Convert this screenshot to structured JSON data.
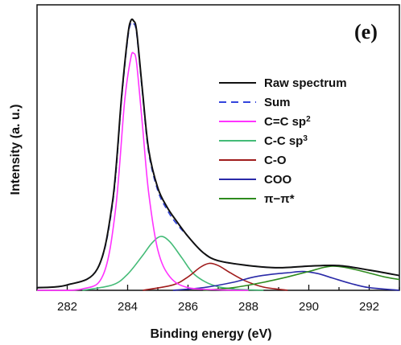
{
  "chart_data": {
    "type": "line",
    "panel_label": "(e)",
    "xlabel": "Binding energy (eV)",
    "ylabel": "Intensity (a. u.)",
    "xlim": [
      281,
      293
    ],
    "ylim": [
      0,
      1.06
    ],
    "x_ticks": [
      282,
      284,
      286,
      288,
      290,
      292
    ],
    "x_tick_labels": [
      "282",
      "284",
      "286",
      "288",
      "290",
      "292"
    ],
    "grid": false,
    "legend_position": "top-right",
    "colors": {
      "raw": "#111111",
      "sum": "#3344dd",
      "cc_sp2": "#ff33ff",
      "cc_sp3": "#44bb77",
      "co": "#a01c1c",
      "coo": "#2a2aa8",
      "pipi": "#2e8b1e"
    },
    "series": [
      {
        "key": "raw",
        "name": "Raw spectrum",
        "style": "solid",
        "x": [
          281.0,
          282.0,
          283.0,
          283.5,
          283.8,
          284.0,
          284.1,
          284.2,
          284.3,
          284.5,
          284.7,
          285.0,
          285.3,
          285.6,
          286.0,
          286.5,
          287.0,
          288.0,
          289.0,
          290.0,
          291.0,
          292.0,
          293.0
        ],
        "y": [
          0.01,
          0.02,
          0.08,
          0.33,
          0.72,
          0.94,
          1.0,
          1.0,
          0.96,
          0.73,
          0.52,
          0.38,
          0.31,
          0.26,
          0.2,
          0.14,
          0.11,
          0.092,
          0.084,
          0.09,
          0.092,
          0.075,
          0.055
        ]
      },
      {
        "key": "sum",
        "name": "Sum",
        "style": "dashed",
        "x": [
          281.0,
          282.0,
          283.0,
          283.5,
          283.8,
          284.0,
          284.1,
          284.2,
          284.3,
          284.5,
          284.7,
          285.0,
          285.3,
          285.6,
          286.0,
          286.5,
          287.0,
          288.0,
          289.0,
          290.0,
          291.0,
          292.0,
          293.0
        ],
        "y": [
          0.01,
          0.02,
          0.08,
          0.32,
          0.71,
          0.93,
          0.99,
          0.99,
          0.95,
          0.72,
          0.51,
          0.37,
          0.3,
          0.25,
          0.2,
          0.14,
          0.11,
          0.092,
          0.084,
          0.09,
          0.092,
          0.075,
          0.055
        ]
      },
      {
        "key": "cc_sp2",
        "name": "C=C sp2",
        "style": "solid",
        "x": [
          281.0,
          282.5,
          283.2,
          283.6,
          283.9,
          284.1,
          284.2,
          284.3,
          284.5,
          284.7,
          285.0,
          285.4,
          286.0,
          287.0,
          288.0
        ],
        "y": [
          0.0,
          0.005,
          0.06,
          0.3,
          0.7,
          0.86,
          0.88,
          0.84,
          0.6,
          0.36,
          0.15,
          0.05,
          0.01,
          0.002,
          0.0
        ]
      },
      {
        "key": "cc_sp3",
        "name": "C-C sp3",
        "style": "solid",
        "x": [
          282.5,
          283.5,
          284.0,
          284.5,
          284.8,
          285.1,
          285.4,
          285.8,
          286.2,
          286.8,
          287.5,
          288.5
        ],
        "y": [
          0.0,
          0.02,
          0.06,
          0.13,
          0.175,
          0.2,
          0.18,
          0.12,
          0.06,
          0.02,
          0.005,
          0.0
        ]
      },
      {
        "key": "co",
        "name": "C-O",
        "style": "solid",
        "x": [
          284.5,
          285.5,
          286.0,
          286.4,
          286.7,
          287.0,
          287.4,
          287.9,
          288.5,
          289.3
        ],
        "y": [
          0.0,
          0.02,
          0.05,
          0.085,
          0.1,
          0.092,
          0.065,
          0.035,
          0.012,
          0.0
        ]
      },
      {
        "key": "coo",
        "name": "COO",
        "style": "solid",
        "x": [
          285.5,
          286.5,
          287.5,
          288.2,
          288.8,
          289.3,
          289.8,
          290.3,
          290.8,
          291.4,
          292.0,
          293.0
        ],
        "y": [
          0.0,
          0.01,
          0.03,
          0.05,
          0.06,
          0.065,
          0.07,
          0.062,
          0.045,
          0.025,
          0.01,
          0.0
        ]
      },
      {
        "key": "pipi",
        "name": "π−π*",
        "style": "solid",
        "x": [
          286.5,
          287.5,
          288.5,
          289.3,
          290.0,
          290.5,
          290.8,
          291.2,
          291.8,
          292.5,
          293.0
        ],
        "y": [
          0.0,
          0.01,
          0.03,
          0.05,
          0.07,
          0.085,
          0.09,
          0.085,
          0.07,
          0.05,
          0.04
        ]
      }
    ]
  }
}
